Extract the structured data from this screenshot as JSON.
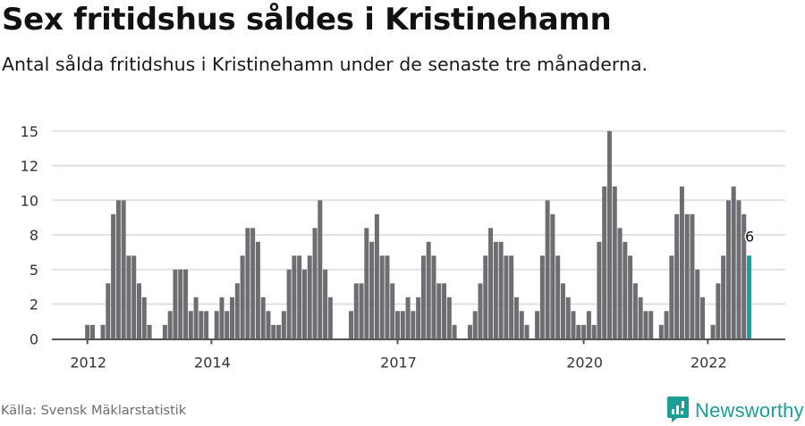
{
  "header": {
    "title": "Sex fritidshus såldes i Kristinehamn",
    "subtitle": "Antal sålda fritidshus i Kristinehamn under de senaste tre månaderna."
  },
  "footer": {
    "source": "Källa: Svensk Mäklarstatistik",
    "brand": "Newsworthy",
    "brand_icon": "newsworthy-logo-icon"
  },
  "colors": {
    "bar": "#6e6d72",
    "highlight": "#11a59b",
    "grid": "#e2e2e2",
    "axis": "#555555",
    "brand": "#1b9e95"
  },
  "chart_data": {
    "type": "bar",
    "title": "Sex fritidshus såldes i Kristinehamn",
    "subtitle": "Antal sålda fritidshus i Kristinehamn under de senaste tre månaderna.",
    "xlabel": "",
    "ylabel": "",
    "ylim": [
      0,
      15
    ],
    "yticks": [
      0,
      2.5,
      5,
      7.5,
      10,
      12.5,
      15
    ],
    "ytick_labels": [
      "0",
      "2",
      "5",
      "8",
      "10",
      "12",
      "15"
    ],
    "xtick_labels": [
      "2012",
      "2014",
      "2017",
      "2020",
      "2022"
    ],
    "xtick_month_index": [
      0,
      24,
      60,
      96,
      120
    ],
    "grid": true,
    "legend": null,
    "start_month": "2012-01",
    "end_month": "2022-09",
    "highlight_index": 128,
    "highlight_label": "6",
    "values": [
      1,
      1,
      0,
      1,
      4,
      9,
      10,
      10,
      6,
      6,
      4,
      3,
      1,
      0,
      0,
      1,
      2,
      5,
      5,
      5,
      2,
      3,
      2,
      2,
      0,
      2,
      3,
      2,
      3,
      4,
      6,
      8,
      8,
      7,
      3,
      2,
      1,
      1,
      2,
      5,
      6,
      6,
      5,
      6,
      8,
      10,
      5,
      3,
      0,
      0,
      0,
      2,
      4,
      4,
      8,
      7,
      9,
      6,
      6,
      4,
      2,
      2,
      3,
      2,
      3,
      6,
      7,
      6,
      4,
      4,
      3,
      1,
      0,
      0,
      1,
      2,
      4,
      6,
      8,
      7,
      7,
      6,
      6,
      3,
      2,
      1,
      0,
      2,
      6,
      10,
      9,
      6,
      4,
      3,
      2,
      1,
      1,
      2,
      1,
      7,
      11,
      15,
      11,
      8,
      7,
      6,
      4,
      3,
      2,
      2,
      0,
      1,
      2,
      6,
      9,
      11,
      9,
      9,
      5,
      3,
      0,
      1,
      4,
      6,
      10,
      11,
      10,
      9,
      6
    ]
  }
}
